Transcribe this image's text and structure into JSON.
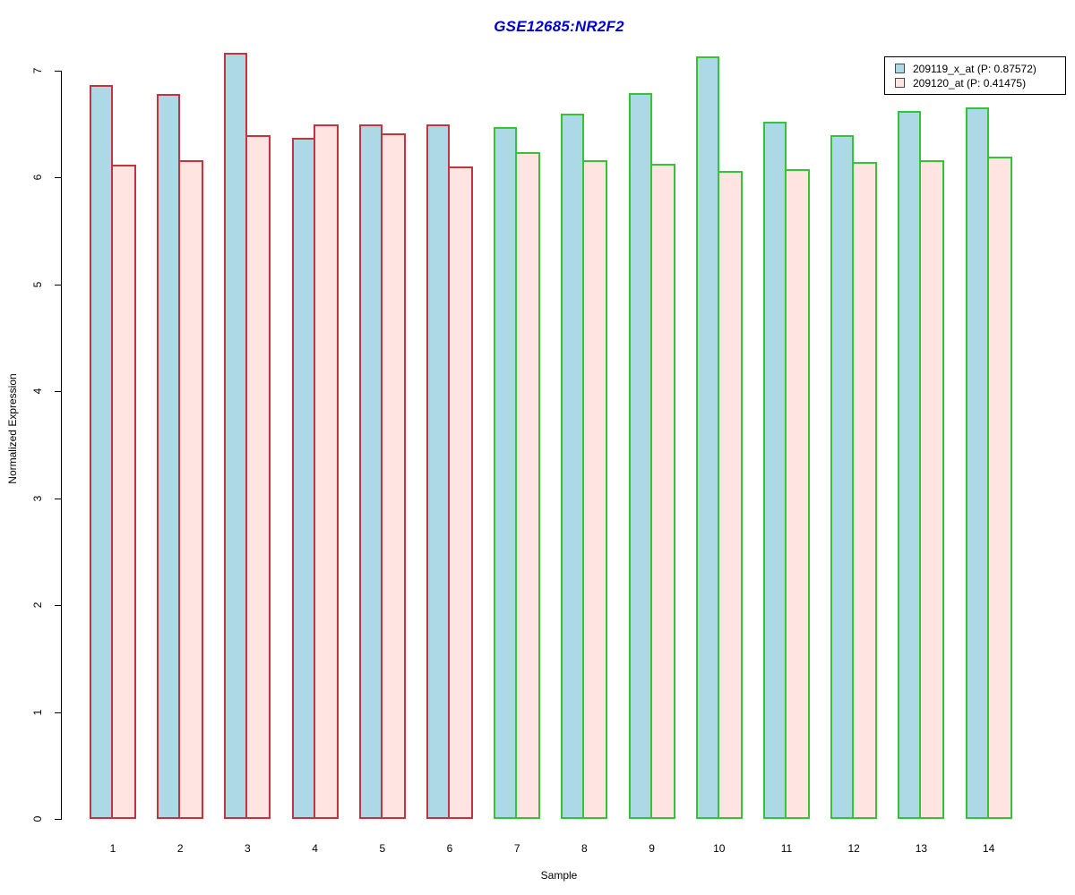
{
  "chart_data": {
    "type": "bar",
    "title": "GSE12685:NR2F2",
    "title_color": "#0000cc",
    "xlabel": "Sample",
    "ylabel": "Normalized Expression",
    "ylim": [
      0,
      7
    ],
    "yticks": [
      0,
      1,
      2,
      3,
      4,
      5,
      6,
      7
    ],
    "categories": [
      "1",
      "2",
      "3",
      "4",
      "5",
      "6",
      "7",
      "8",
      "9",
      "10",
      "11",
      "12",
      "13",
      "14"
    ],
    "series": [
      {
        "name": "209119_x_at (P: 0.87572)",
        "fill": "#add8e6",
        "values": [
          6.87,
          6.78,
          7.17,
          6.37,
          6.5,
          6.5,
          6.47,
          6.6,
          6.79,
          7.13,
          6.52,
          6.4,
          6.62,
          6.66
        ]
      },
      {
        "name": "209120_at (P: 0.41475)",
        "fill": "#ffe4e1",
        "values": [
          6.12,
          6.16,
          6.4,
          6.5,
          6.41,
          6.1,
          6.24,
          6.16,
          6.13,
          6.06,
          6.08,
          6.15,
          6.16,
          6.2
        ]
      }
    ],
    "bar_border_colors": [
      "#c5343c",
      "#c5343c",
      "#c5343c",
      "#c5343c",
      "#c5343c",
      "#c5343c",
      "#35c435",
      "#35c435",
      "#35c435",
      "#35c435",
      "#35c435",
      "#35c435",
      "#35c435",
      "#35c435"
    ],
    "grid": false,
    "legend_position": "top-right",
    "axis_color": "#000000"
  }
}
